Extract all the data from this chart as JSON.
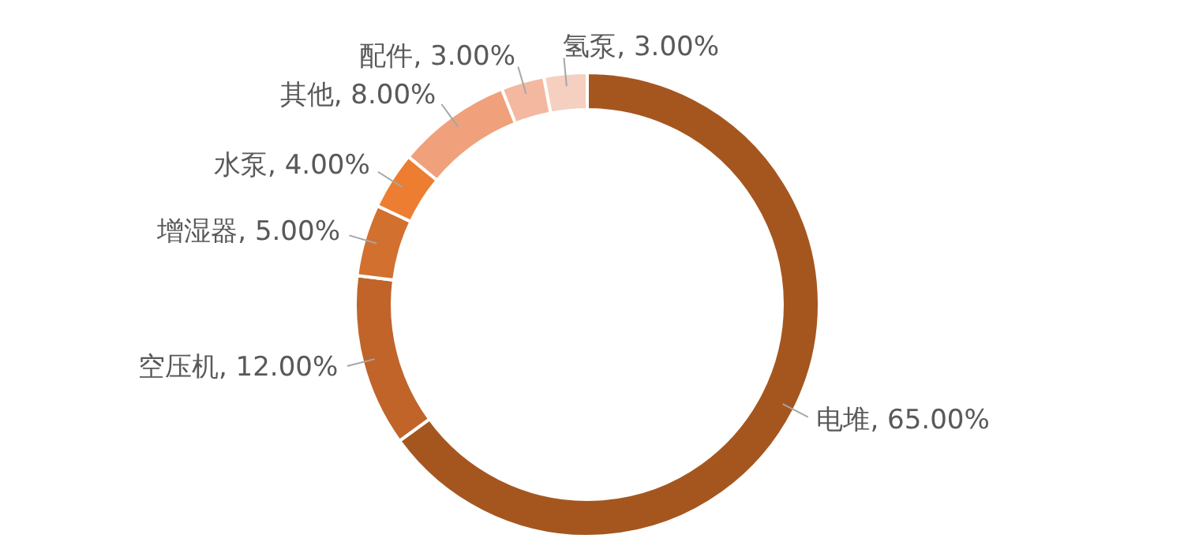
{
  "chart_data": {
    "type": "donut",
    "categories": [
      "电堆",
      "空压机",
      "增湿器",
      "水泵",
      "其他",
      "配件",
      "氢泵"
    ],
    "values": [
      65,
      12,
      5,
      4,
      8,
      3,
      3
    ],
    "value_labels": [
      "65.00%",
      "12.00%",
      "5.00%",
      "4.00%",
      "8.00%",
      "3.00%",
      "3.00%"
    ],
    "colors": [
      "#a5561f",
      "#c0642a",
      "#d2702f",
      "#ed7d31",
      "#f0a07b",
      "#f4b8a0",
      "#f5cfc0"
    ],
    "legend": false
  }
}
